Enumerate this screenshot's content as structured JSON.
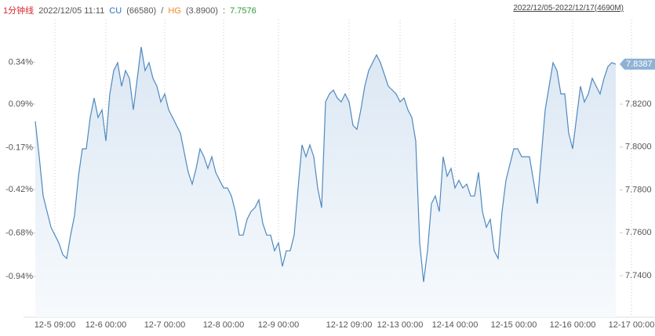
{
  "header": {
    "period": "1分钟线",
    "datetime": "2022/12/05 11:11",
    "symbol1": "CU",
    "price1": "(66580)",
    "sep": "/",
    "symbol2": "HG",
    "price2": "(3.8900)",
    "colon": ":",
    "ratio": "7.7576",
    "range": "2022/12/05-2022/12/17(4690M)"
  },
  "chart_data": {
    "type": "line",
    "grid": "x",
    "categories": [
      null,
      null,
      null,
      null,
      null,
      "12-5 09:00",
      null,
      null,
      null,
      null,
      null,
      null,
      null,
      null,
      null,
      null,
      null,
      null,
      "12-6 00:00",
      null,
      null,
      null,
      null,
      null,
      null,
      null,
      null,
      null,
      null,
      null,
      null,
      null,
      null,
      "12-7 00:00",
      null,
      null,
      null,
      null,
      null,
      null,
      null,
      null,
      null,
      null,
      null,
      null,
      null,
      null,
      "12-8 00:00",
      null,
      null,
      null,
      null,
      null,
      null,
      null,
      null,
      null,
      null,
      null,
      null,
      null,
      "12-9 00:00",
      null,
      null,
      null,
      null,
      null,
      null,
      null,
      null,
      null,
      null,
      null,
      null,
      null,
      null,
      null,
      null,
      null,
      "12-12 09:00",
      null,
      null,
      null,
      null,
      null,
      null,
      null,
      null,
      null,
      null,
      null,
      null,
      "12-13 00:00",
      null,
      null,
      null,
      null,
      null,
      null,
      null,
      null,
      null,
      null,
      null,
      null,
      null,
      "12-14 00:00",
      null,
      null,
      null,
      null,
      null,
      null,
      null,
      null,
      null,
      null,
      null,
      null,
      null,
      null,
      "12-15 00:00",
      null,
      null,
      null,
      null,
      null,
      null,
      null,
      null,
      null,
      null,
      null,
      null,
      null,
      null,
      "12-16 00:00",
      null,
      null,
      null,
      null,
      null,
      null,
      null,
      null,
      null,
      null,
      null,
      null,
      null,
      null,
      "12-17 00:00"
    ],
    "series": [
      {
        "color": "#4f89bf",
        "values": [
          7.812,
          7.7955,
          7.7772,
          7.7699,
          7.7626,
          7.7589,
          7.7553,
          7.7498,
          7.748,
          7.7589,
          7.7681,
          7.7864,
          7.7992,
          7.7992,
          7.8138,
          7.8229,
          7.8138,
          7.8174,
          7.8028,
          7.8248,
          7.8357,
          7.8394,
          7.8284,
          7.8357,
          7.8321,
          7.8174,
          7.8321,
          7.8467,
          7.8357,
          7.8394,
          7.8321,
          7.8284,
          7.8211,
          7.8248,
          7.8174,
          7.8138,
          7.8101,
          7.8065,
          7.7973,
          7.7882,
          7.7827,
          7.79,
          7.7992,
          7.7955,
          7.79,
          7.7955,
          7.7882,
          7.7845,
          7.7809,
          7.7809,
          7.7772,
          7.7699,
          7.7589,
          7.7589,
          7.7663,
          7.7699,
          7.7717,
          7.7754,
          7.7644,
          7.7589,
          7.7589,
          7.7516,
          7.7553,
          7.7443,
          7.7516,
          7.7516,
          7.7589,
          7.7809,
          7.801,
          7.7955,
          7.801,
          7.7955,
          7.7809,
          7.7717,
          7.8211,
          7.8248,
          7.8266,
          7.8229,
          7.8211,
          7.8248,
          7.8211,
          7.8101,
          7.8083,
          7.8174,
          7.8284,
          7.8357,
          7.8394,
          7.843,
          7.8394,
          7.8339,
          7.8284,
          7.8266,
          7.8248,
          7.8211,
          7.8229,
          7.8174,
          7.8138,
          7.8028,
          7.7553,
          7.737,
          7.7516,
          7.7736,
          7.7772,
          7.7699,
          7.7955,
          7.7864,
          7.79,
          7.7809,
          7.7845,
          7.7809,
          7.7827,
          7.7772,
          7.7772,
          7.7882,
          7.7699,
          7.7626,
          7.7663,
          7.7516,
          7.748,
          7.7699,
          7.7845,
          7.7919,
          7.7992,
          7.7992,
          7.7955,
          7.7955,
          7.7955,
          7.7845,
          7.7736,
          7.7955,
          7.8174,
          7.8284,
          7.8394,
          7.8357,
          7.8248,
          7.8248,
          7.8065,
          7.7992,
          7.8138,
          7.8284,
          7.8211,
          7.8248,
          7.8321,
          7.8284,
          7.8248,
          7.8321,
          7.8376,
          7.8394,
          7.8387,
          null,
          null,
          null,
          null
        ]
      }
    ],
    "ylim": [
      7.7206,
      7.8595
    ],
    "yticks": [
      {
        "value": 7.82,
        "label": "7.8200"
      },
      {
        "value": 7.8,
        "label": "7.8000"
      },
      {
        "value": 7.78,
        "label": "7.7800"
      },
      {
        "value": 7.76,
        "label": "7.7600"
      },
      {
        "value": 7.74,
        "label": "7.7400"
      }
    ],
    "y2lim": [
      -1.183,
      0.595
    ],
    "y2ticks": [
      {
        "value": 0.34,
        "label": "0.34%"
      },
      {
        "value": 0.09,
        "label": "0.09%"
      },
      {
        "value": -0.17,
        "label": "-0.17%"
      },
      {
        "value": -0.42,
        "label": "-0.42%"
      },
      {
        "value": -0.68,
        "label": "-0.68%"
      },
      {
        "value": -0.94,
        "label": "-0.94%"
      }
    ]
  }
}
